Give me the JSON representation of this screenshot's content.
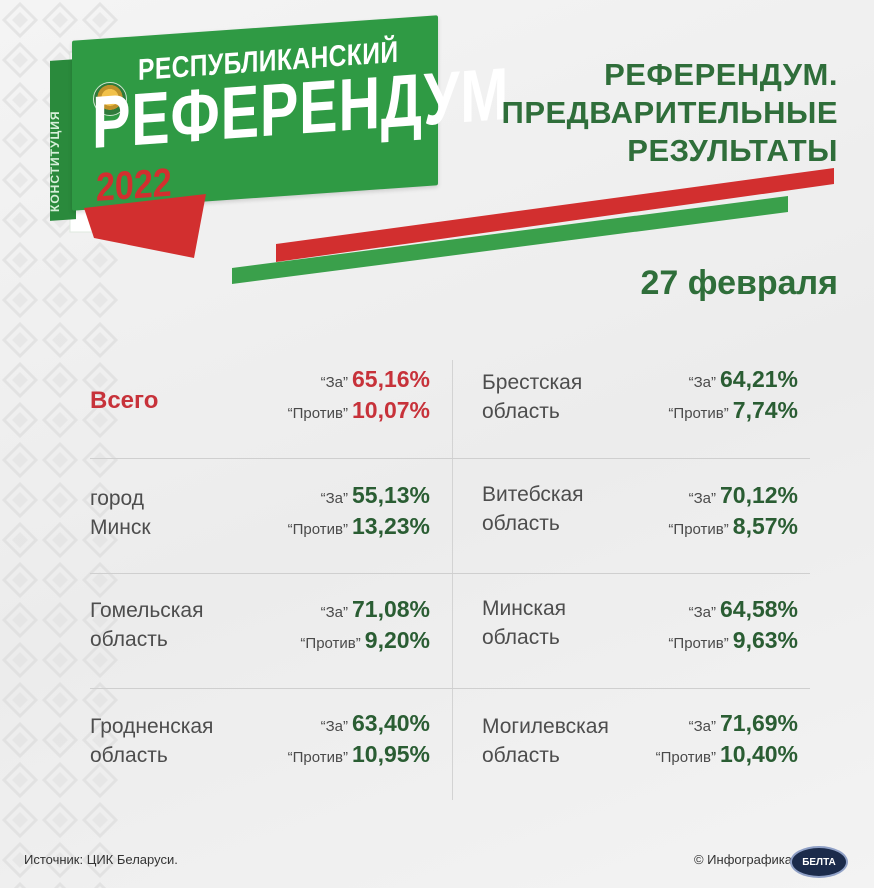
{
  "logo": {
    "line1": "РЕСПУБЛИКАНСКИЙ",
    "line2": "РЕФЕРЕНДУМ",
    "year": "2022",
    "spine": "КОНСТИТУЦИЯ"
  },
  "title": {
    "line1": "РЕФЕРЕНДУМ.",
    "line2": "ПРЕДВАРИТЕЛЬНЫЕ",
    "line3": "РЕЗУЛЬТАТЫ"
  },
  "date": "27 февраля",
  "labels": {
    "for": "“За”",
    "against": "“Против”"
  },
  "results": [
    {
      "region": "Всего",
      "for": "65,16%",
      "against": "10,07%"
    },
    {
      "region": "Брестская\nобласть",
      "for": "64,21%",
      "against": "7,74%"
    },
    {
      "region": "город\nМинск",
      "for": "55,13%",
      "against": "13,23%"
    },
    {
      "region": "Витебская\nобласть",
      "for": "70,12%",
      "against": "8,57%"
    },
    {
      "region": "Гомельская\nобласть",
      "for": "71,08%",
      "against": "9,20%"
    },
    {
      "region": "Минская\nобласть",
      "for": "64,58%",
      "against": "9,63%"
    },
    {
      "region": "Гродненская\nобласть",
      "for": "63,40%",
      "against": "10,95%"
    },
    {
      "region": "Могилевская\nобласть",
      "for": "71,69%",
      "against": "10,40%"
    }
  ],
  "footer": {
    "source": "Источник: ЦИК Беларуси.",
    "credit": "© Инфографика",
    "agency": "БЕЛТА"
  },
  "colors": {
    "green": "#2f9a44",
    "red": "#d22f2f",
    "dark_green": "#2f6e3a"
  }
}
